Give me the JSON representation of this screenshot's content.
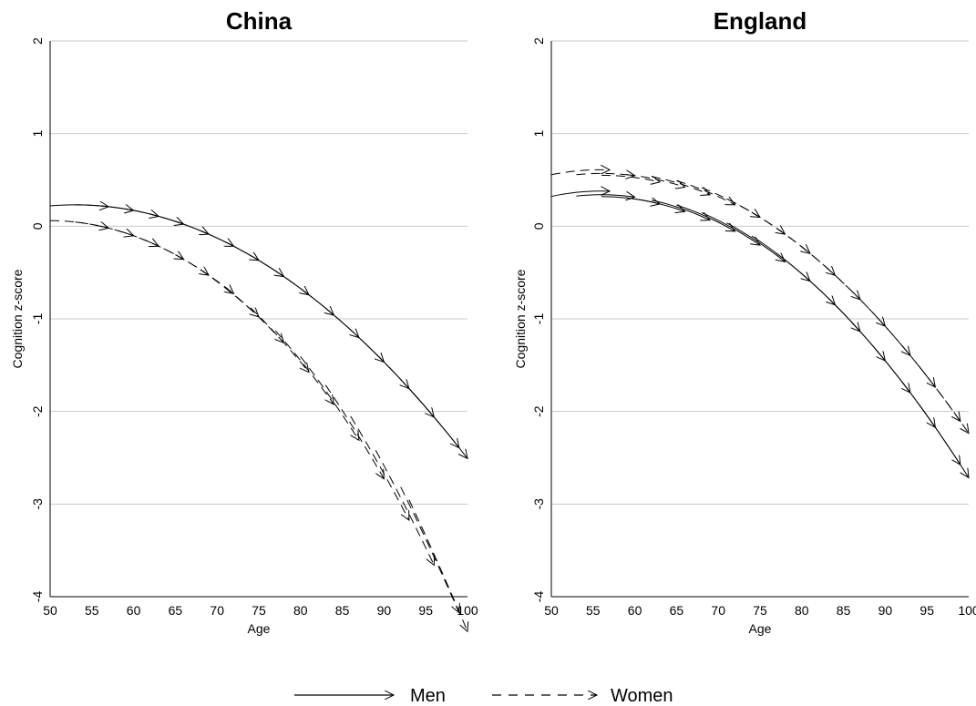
{
  "chart_data": [
    {
      "type": "line",
      "title": "China",
      "xlabel": "Age",
      "ylabel": "Cognition z-score",
      "xlim": [
        50,
        100
      ],
      "ylim": [
        -4,
        2
      ],
      "x_ticks": [
        "50",
        "55",
        "60",
        "65",
        "70",
        "75",
        "80",
        "85",
        "90",
        "95",
        "100"
      ],
      "y_ticks": [
        "2",
        "1",
        "0",
        "-1",
        "-2",
        "-3",
        "-4"
      ],
      "grid": "horizontal",
      "series": [
        {
          "name": "Men",
          "style": "solid",
          "curve": {
            "start_age": 50,
            "start_value": 0.22,
            "peak_age": 53,
            "quad": -0.00124
          },
          "cohorts": [
            [
              50,
              57
            ],
            [
              53,
              60
            ],
            [
              56,
              63
            ],
            [
              59,
              66
            ],
            [
              62,
              69
            ],
            [
              65,
              72
            ],
            [
              68,
              75
            ],
            [
              71,
              78
            ],
            [
              74,
              81
            ],
            [
              77,
              84
            ],
            [
              80,
              87
            ],
            [
              83,
              90
            ],
            [
              86,
              93
            ],
            [
              89,
              96
            ],
            [
              92,
              99
            ],
            [
              93,
              100
            ]
          ]
        },
        {
          "name": "Women",
          "style": "dashed",
          "curve": {
            "start_age": 50,
            "start_value": 0.06,
            "peak_age": 50,
            "quad": -0.00163
          },
          "cohorts": [
            [
              50,
              57
            ],
            [
              53,
              60
            ],
            [
              56,
              63
            ],
            [
              59,
              66
            ],
            [
              62,
              69
            ],
            [
              65,
              72
            ],
            [
              68,
              75
            ],
            [
              71,
              78
            ],
            [
              74,
              81
            ],
            [
              77,
              84
            ],
            [
              80,
              87
            ],
            [
              83,
              90
            ],
            [
              86,
              93
            ],
            [
              89,
              96
            ],
            [
              92,
              99
            ],
            [
              93,
              100
            ]
          ],
          "divergence": [
            0,
            0,
            0,
            0,
            0,
            0,
            0.02,
            0.04,
            0.07,
            0.1,
            0.14,
            0.18,
            0.22,
            0.27,
            0.32,
            0.36
          ]
        }
      ]
    },
    {
      "type": "line",
      "title": "England",
      "xlabel": "Age",
      "ylabel": "Cognition z-score",
      "xlim": [
        50,
        100
      ],
      "ylim": [
        -4,
        2
      ],
      "x_ticks": [
        "50",
        "55",
        "60",
        "65",
        "70",
        "75",
        "80",
        "85",
        "90",
        "95",
        "100"
      ],
      "y_ticks": [
        "2",
        "1",
        "0",
        "-1",
        "-2",
        "-3",
        "-4"
      ],
      "grid": "horizontal",
      "series": [
        {
          "name": "Men",
          "style": "solid",
          "curve": {
            "peak_age": 56,
            "peak_value": 0.42,
            "quad": -0.00162
          },
          "cohorts": [
            [
              50,
              57
            ],
            [
              53,
              60
            ],
            [
              56,
              63
            ],
            [
              59,
              66
            ],
            [
              62,
              69
            ],
            [
              65,
              72
            ],
            [
              68,
              75
            ],
            [
              71,
              78
            ],
            [
              74,
              81
            ],
            [
              77,
              84
            ],
            [
              80,
              87
            ],
            [
              83,
              90
            ],
            [
              86,
              93
            ],
            [
              89,
              96
            ],
            [
              92,
              99
            ],
            [
              94,
              100
            ]
          ],
          "offsets": [
            -0.04,
            -0.08,
            -0.1,
            -0.1,
            -0.08,
            -0.06,
            -0.04,
            -0.02,
            0,
            0,
            0,
            0,
            0,
            0,
            0,
            0
          ]
        },
        {
          "name": "Women",
          "style": "dashed",
          "curve": {
            "peak_age": 56,
            "peak_value": 0.63,
            "quad": -0.00148
          },
          "cohorts": [
            [
              50,
              57
            ],
            [
              53,
              60
            ],
            [
              56,
              63
            ],
            [
              59,
              66
            ],
            [
              62,
              69
            ],
            [
              65,
              72
            ],
            [
              68,
              75
            ],
            [
              71,
              78
            ],
            [
              74,
              81
            ],
            [
              77,
              84
            ],
            [
              80,
              87
            ],
            [
              83,
              90
            ],
            [
              86,
              93
            ],
            [
              89,
              96
            ],
            [
              92,
              99
            ],
            [
              94,
              100
            ]
          ],
          "offsets": [
            -0.02,
            -0.06,
            -0.08,
            -0.06,
            -0.04,
            -0.02,
            0,
            0,
            0,
            0,
            0,
            0,
            0,
            0,
            0,
            0
          ]
        }
      ]
    }
  ],
  "legend": {
    "men_label": "Men",
    "women_label": "Women"
  }
}
